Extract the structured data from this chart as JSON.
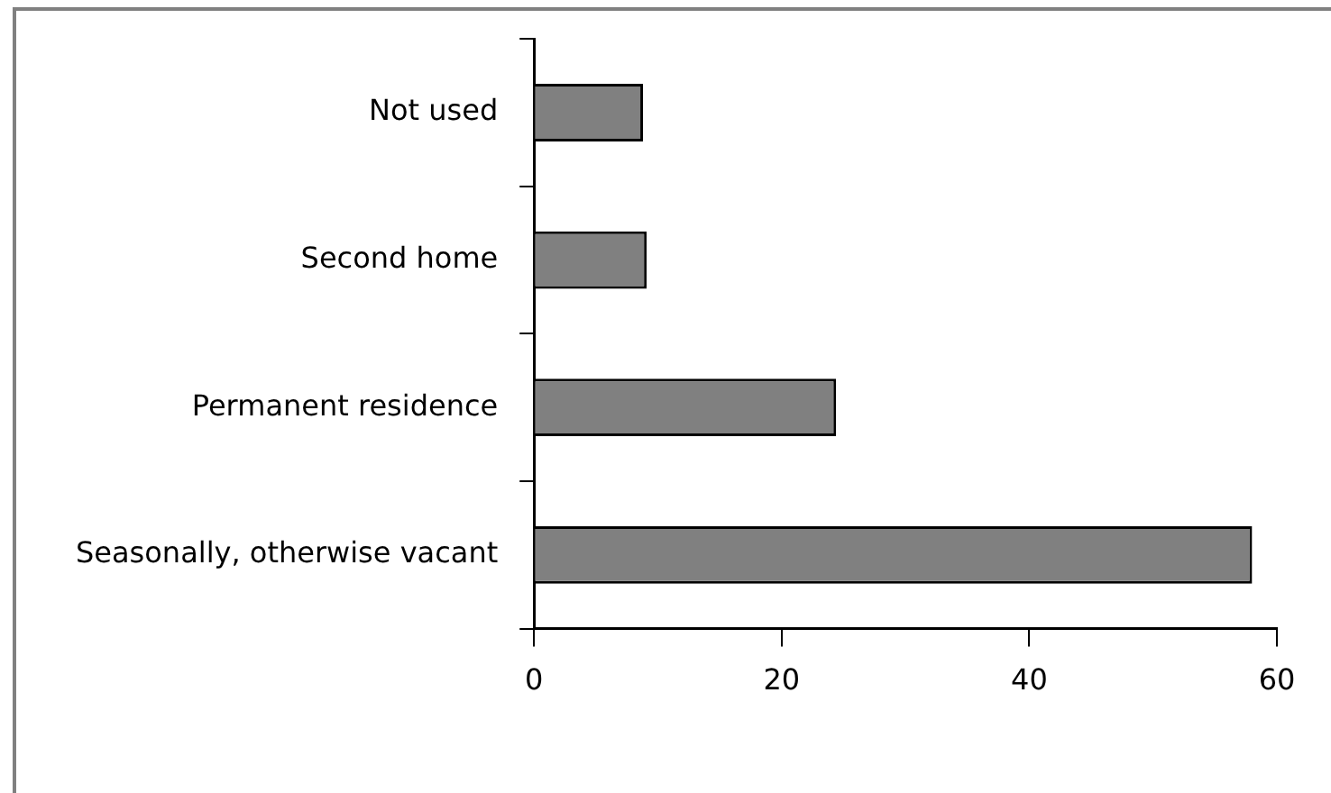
{
  "chart_data": {
    "type": "bar",
    "orientation": "horizontal",
    "categories": [
      "Not used",
      "Second home",
      "Permanent residence",
      "Seasonally, otherwise vacant"
    ],
    "values": [
      8.8,
      9.1,
      24.4,
      58
    ],
    "color": "#808080",
    "xlim": [
      0,
      60
    ],
    "xticks": [
      0,
      20,
      40,
      60
    ],
    "grid": false,
    "legend": false
  }
}
